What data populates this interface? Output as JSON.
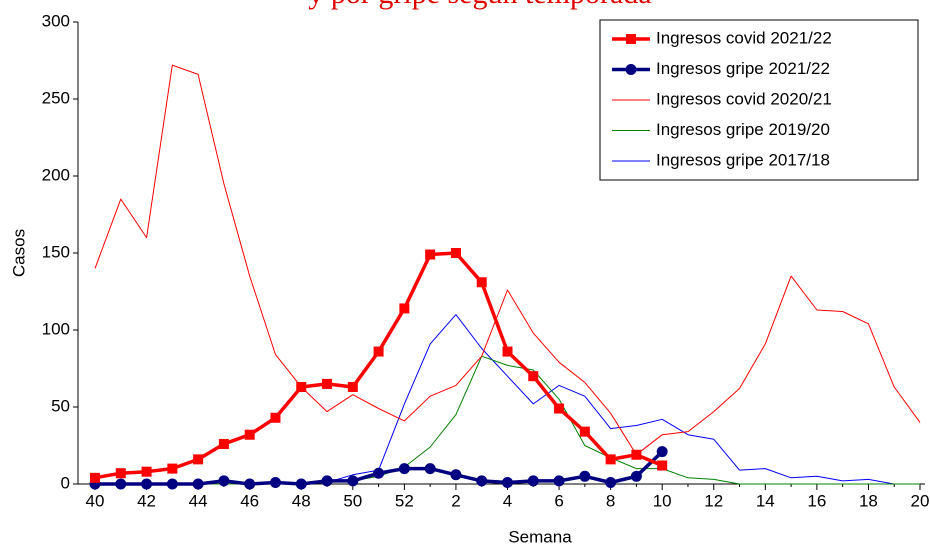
{
  "chart_data": {
    "type": "line",
    "title": "y por gripe según temporada",
    "xlabel": "Semana",
    "ylabel": "Casos",
    "categories": [
      "40",
      null,
      "42",
      null,
      "44",
      null,
      "46",
      null,
      "48",
      null,
      "50",
      null,
      "52",
      null,
      "2",
      null,
      "4",
      null,
      "6",
      null,
      "8",
      null,
      "10",
      null,
      "12",
      null,
      "14",
      null,
      "16",
      null,
      "18",
      null,
      "20"
    ],
    "ylim": [
      0,
      300
    ],
    "yticks": [
      0,
      50,
      100,
      150,
      200,
      250,
      300
    ],
    "legend": "top-right",
    "series": [
      {
        "name": "Ingresos covid 2021/22",
        "color": "#ff0000",
        "width": 3.5,
        "marker": "square",
        "values": [
          4,
          7,
          8,
          10,
          16,
          26,
          32,
          43,
          63,
          65,
          63,
          86,
          114,
          149,
          150,
          131,
          86,
          70,
          49,
          34,
          16,
          19,
          12,
          null,
          null,
          null,
          null,
          null,
          null,
          null,
          null,
          null,
          null
        ]
      },
      {
        "name": "Ingresos gripe 2021/22",
        "color": "#000080",
        "width": 3.5,
        "marker": "circle",
        "values": [
          0,
          0,
          0,
          0,
          0,
          2,
          0,
          1,
          0,
          2,
          2,
          7,
          10,
          10,
          6,
          2,
          1,
          2,
          2,
          5,
          1,
          5,
          21,
          null,
          null,
          null,
          null,
          null,
          null,
          null,
          null,
          null,
          null
        ]
      },
      {
        "name": "Ingresos covid 2020/21",
        "color": "#ff0000",
        "width": 1,
        "marker": "none",
        "values": [
          140,
          185,
          160,
          272,
          266,
          195,
          135,
          84,
          63,
          47,
          58,
          49,
          41,
          57,
          64,
          83,
          126,
          98,
          79,
          66,
          46,
          19,
          32,
          34,
          47,
          62,
          91,
          135,
          113,
          112,
          104,
          63,
          40
        ]
      },
      {
        "name": "Ingresos gripe 2019/20",
        "color": "#008000",
        "width": 1,
        "marker": "none",
        "values": [
          0,
          0,
          0,
          0,
          0,
          0,
          0,
          0,
          1,
          1,
          2,
          5,
          11,
          24,
          45,
          83,
          77,
          74,
          55,
          25,
          17,
          10,
          10,
          4,
          3,
          0,
          0,
          0,
          0,
          0,
          0,
          0,
          0
        ]
      },
      {
        "name": "Ingresos gripe 2017/18",
        "color": "#0000ff",
        "width": 1,
        "marker": "none",
        "values": [
          0,
          0,
          0,
          0,
          0,
          0,
          0,
          0,
          0,
          1,
          6,
          9,
          52,
          91,
          110,
          88,
          70,
          52,
          64,
          57,
          36,
          38,
          42,
          32,
          29,
          9,
          10,
          4,
          5,
          2,
          3,
          0,
          0
        ]
      }
    ]
  }
}
